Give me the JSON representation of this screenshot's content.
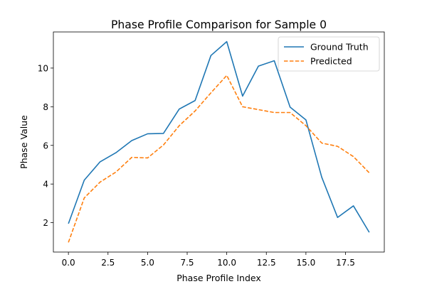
{
  "chart_data": {
    "type": "line",
    "title": "Phase Profile Comparison for Sample 0",
    "xlabel": "Phase Profile Index",
    "ylabel": "Phase Value",
    "xlim": [
      -0.95,
      19.95
    ],
    "ylim": [
      0.48,
      11.87
    ],
    "xticks": [
      0.0,
      2.5,
      5.0,
      7.5,
      10.0,
      12.5,
      15.0,
      17.5
    ],
    "xtick_labels": [
      "0.0",
      "2.5",
      "5.0",
      "7.5",
      "10.0",
      "12.5",
      "15.0",
      "17.5"
    ],
    "yticks": [
      2,
      4,
      6,
      8,
      10
    ],
    "ytick_labels": [
      "2",
      "4",
      "6",
      "8",
      "10"
    ],
    "grid": false,
    "legend_position": "top-right",
    "x": [
      0,
      1,
      2,
      3,
      4,
      5,
      6,
      7,
      8,
      9,
      10,
      11,
      12,
      13,
      14,
      15,
      16,
      17,
      18,
      19
    ],
    "series": [
      {
        "name": "Ground Truth",
        "color": "#1f77b4",
        "style": "solid",
        "values": [
          1.95,
          4.2,
          5.15,
          5.62,
          6.25,
          6.6,
          6.62,
          7.88,
          8.32,
          10.65,
          11.37,
          8.55,
          10.1,
          10.38,
          7.98,
          7.32,
          4.35,
          2.27,
          2.87,
          1.5
        ]
      },
      {
        "name": "Predicted",
        "color": "#ff7f0e",
        "style": "dashed",
        "values": [
          0.98,
          3.28,
          4.1,
          4.62,
          5.38,
          5.35,
          6.02,
          7.02,
          7.78,
          8.72,
          9.62,
          8.0,
          7.85,
          7.7,
          7.7,
          7.02,
          6.12,
          5.95,
          5.42,
          4.58
        ]
      }
    ]
  }
}
